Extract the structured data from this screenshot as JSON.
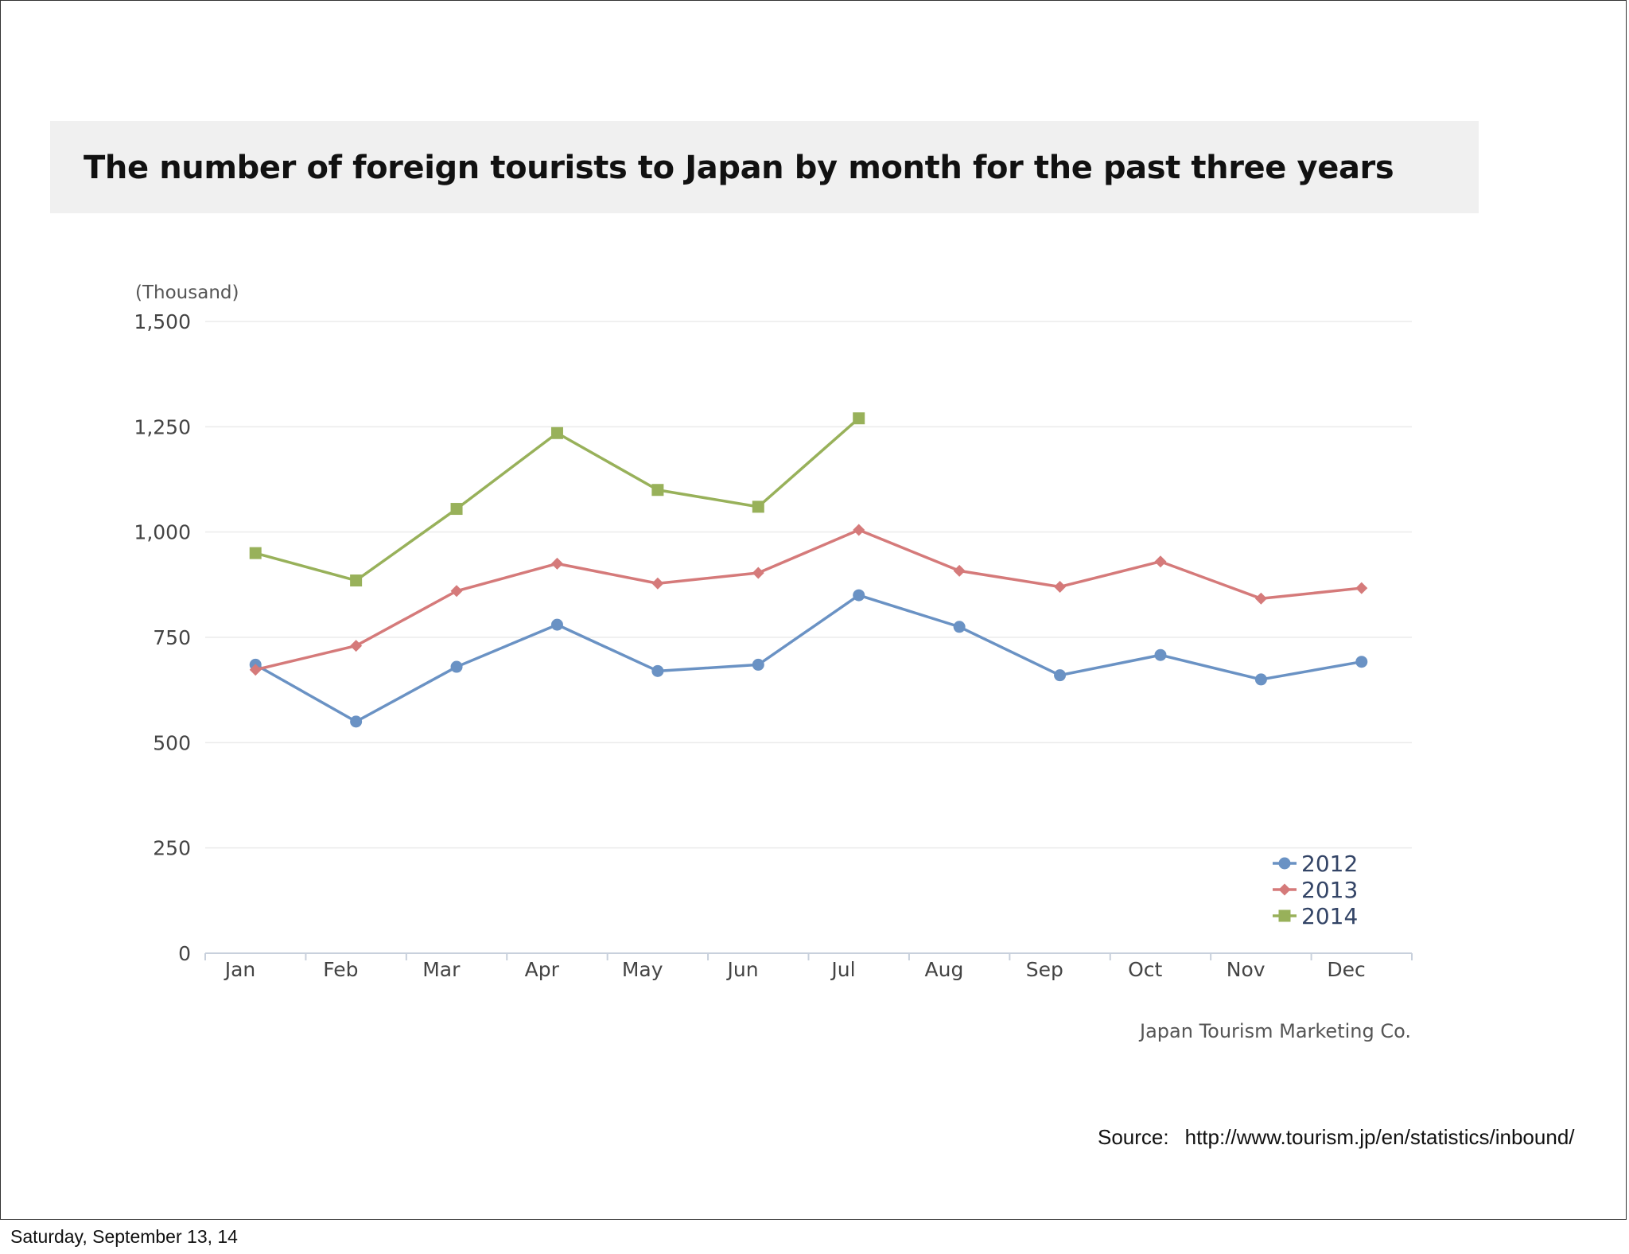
{
  "footer": {
    "date": "Saturday, September 13, 14"
  },
  "source": {
    "label": "Source:",
    "url": "http://www.tourism.jp/en/statistics/inbound/"
  },
  "chart_data": {
    "type": "line",
    "title": "The number of foreign tourists to Japan by month for the past three years",
    "ylabel": "(Thousand)",
    "xlabel": "",
    "credit": "Japan Tourism Marketing Co.",
    "ylim": [
      0,
      1500
    ],
    "yticks": [
      0,
      250,
      500,
      750,
      1000,
      1250,
      1500
    ],
    "ytick_labels": [
      "0",
      "250",
      "500",
      "750",
      "1,000",
      "1,250",
      "1,500"
    ],
    "grid": true,
    "legend_position": "bottom-right",
    "categories": [
      "Jan",
      "Feb",
      "Mar",
      "Apr",
      "May",
      "Jun",
      "Jul",
      "Aug",
      "Sep",
      "Oct",
      "Nov",
      "Dec"
    ],
    "series": [
      {
        "name": "2012",
        "color": "#6a92c4",
        "marker": "circle",
        "values": [
          685,
          550,
          680,
          780,
          670,
          685,
          850,
          775,
          660,
          708,
          650,
          692
        ]
      },
      {
        "name": "2013",
        "color": "#d57a7a",
        "marker": "diamond",
        "values": [
          673,
          730,
          860,
          925,
          878,
          903,
          1005,
          908,
          870,
          930,
          842,
          867
        ]
      },
      {
        "name": "2014",
        "color": "#98b15a",
        "marker": "square",
        "values": [
          950,
          885,
          1055,
          1235,
          1100,
          1060,
          1270,
          null,
          null,
          null,
          null,
          null
        ]
      }
    ]
  }
}
